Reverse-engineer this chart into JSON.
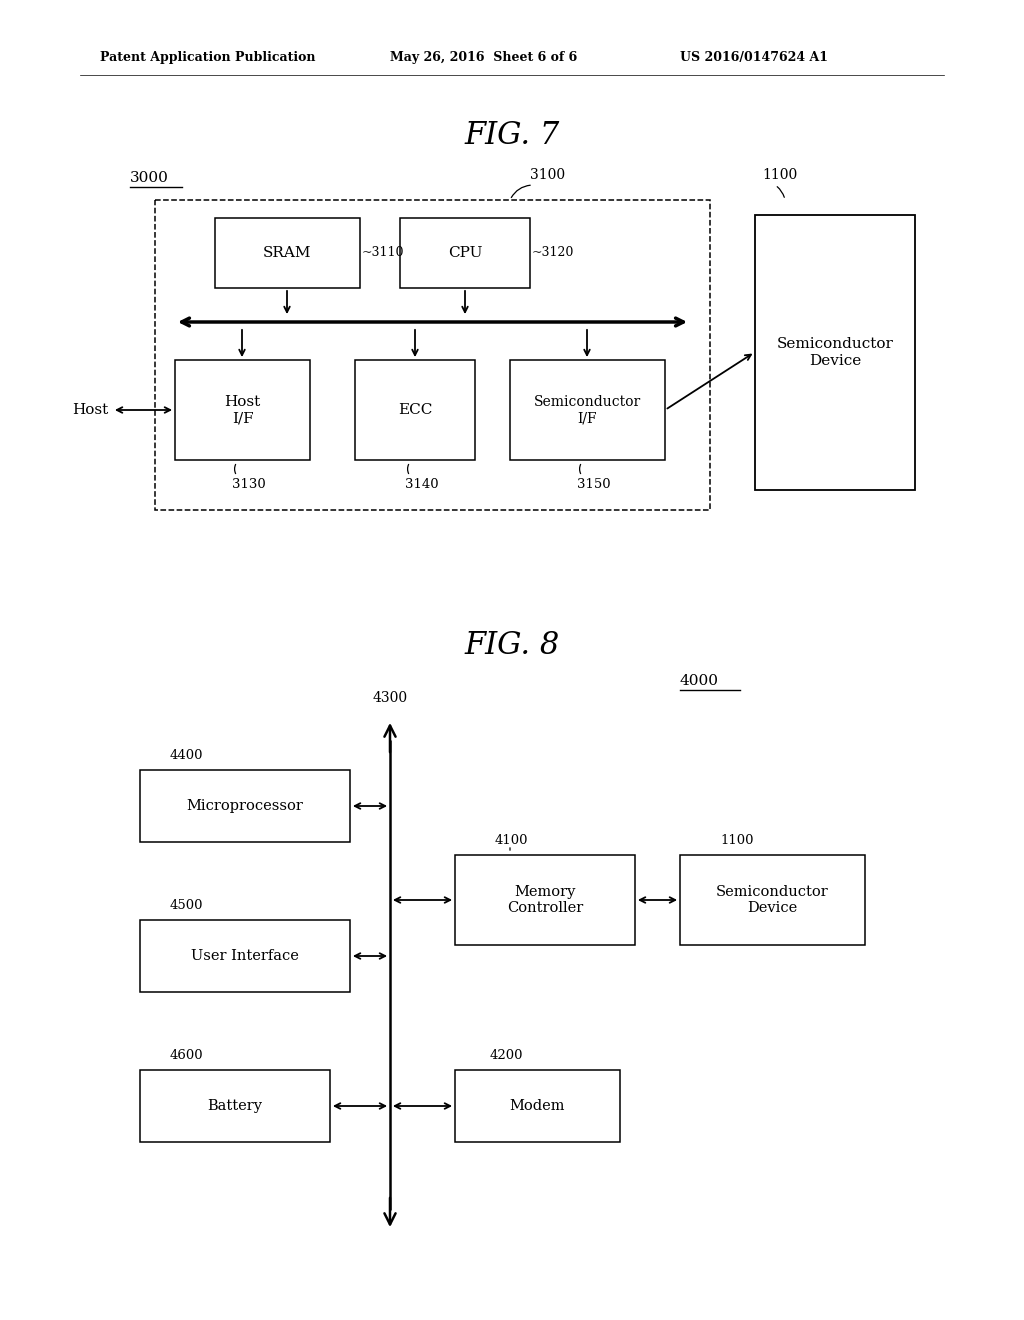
{
  "bg_color": "#ffffff",
  "header_left": "Patent Application Publication",
  "header_mid": "May 26, 2016  Sheet 6 of 6",
  "header_right": "US 2016/0147624 A1",
  "fig7_title": "FIG. 7",
  "fig8_title": "FIG. 8",
  "fig7": {
    "label_3000": "3000",
    "label_3100": "3100",
    "label_1100": "1100",
    "label_sram": "SRAM",
    "label_cpu": "CPU",
    "label_host_if": "Host\nI/F",
    "label_ecc": "ECC",
    "label_semi_if": "Semiconductor\nI/F",
    "label_semi_dev": "Semiconductor\nDevice",
    "label_3110": "~3110",
    "label_3120": "~3120",
    "label_3130": "3130",
    "label_3140": "3140",
    "label_3150": "3150",
    "label_host": "Host"
  },
  "fig8": {
    "label_4000": "4000",
    "label_4100": "4100",
    "label_1100": "1100",
    "label_4200": "4200",
    "label_4300": "4300",
    "label_4400": "4400",
    "label_4500": "4500",
    "label_4600": "4600",
    "label_microprocessor": "Microprocessor",
    "label_user_interface": "User Interface",
    "label_battery": "Battery",
    "label_memory_ctrl": "Memory\nController",
    "label_modem": "Modem",
    "label_semi_dev": "Semiconductor\nDevice"
  }
}
